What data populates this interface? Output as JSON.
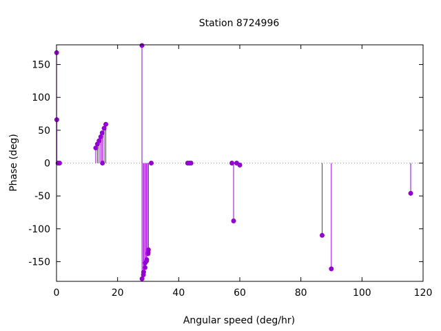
{
  "chart_data": {
    "type": "scatter",
    "style": "impulses-with-points",
    "title": "Station 8724996",
    "xlabel": "Angular speed (deg/hr)",
    "ylabel": "Phase (deg)",
    "xlim": [
      0,
      120
    ],
    "ylim": [
      -180,
      180
    ],
    "xticks": [
      0,
      20,
      40,
      60,
      80,
      100,
      120
    ],
    "yticks": [
      -150,
      -100,
      -50,
      0,
      50,
      100,
      150
    ],
    "zero_line": true,
    "grid": false,
    "series": [
      {
        "color": "#9400d3",
        "x": [
          0.04,
          0.08,
          0.5,
          1.0,
          12.85,
          13.4,
          13.94,
          14.5,
          14.96,
          15.04,
          15.59,
          16.14,
          27.97,
          28.0,
          28.44,
          28.51,
          28.98,
          29.0,
          29.46,
          29.53,
          29.96,
          30.0,
          30.08,
          31.02,
          42.93,
          43.48,
          44.03,
          57.42,
          57.97,
          58.98,
          60.0,
          86.95,
          89.96,
          115.94
        ],
        "y": [
          168,
          66,
          0,
          0,
          23,
          29,
          34,
          40,
          46,
          0,
          53,
          59,
          179,
          -176,
          -170,
          -166,
          -159,
          -152,
          -149,
          -147,
          -138,
          -136,
          -132,
          0,
          0,
          0,
          0,
          0,
          -88,
          0,
          -3,
          -110,
          -161,
          -46
        ]
      }
    ]
  }
}
